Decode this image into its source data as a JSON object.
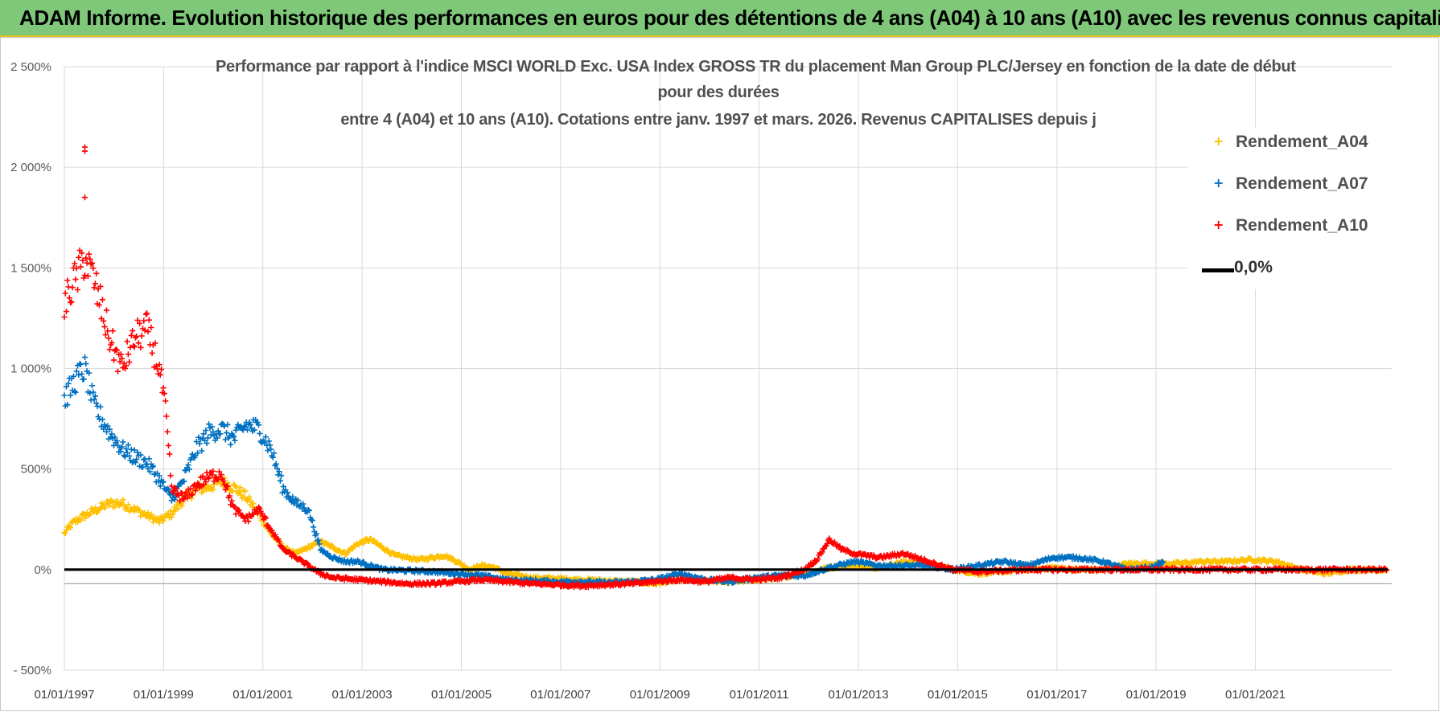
{
  "banner": {
    "text": "ADAM Informe. Evolution historique des performances en euros pour des détentions de 4 ans (A04) à 10 ans (A10) avec les revenus connus capitalisés"
  },
  "colors": {
    "banner_bg": "#7fc87a",
    "banner_border": "#e5c420",
    "a04": "#ffc000",
    "a07": "#0070c0",
    "a10": "#ff0000",
    "zero_line": "#000000",
    "grid": "#d9d9d9"
  },
  "chart_data": {
    "type": "scatter",
    "title_lines": [
      "Performance par rapport à l'indice MSCI WORLD Exc. USA Index GROSS TR  du placement Man Group PLC/Jersey en fonction de la date de début",
      "pour des durées",
      "entre 4 (A04) et 10 ans (A10).  Cotations entre janv. 1997 et mars. 2026.  Revenus CAPITALISES depuis j"
    ],
    "xlabel": "",
    "ylabel": "",
    "x_range": [
      "1997-01-01",
      "2023-10-01"
    ],
    "ylim": [
      -500,
      2500
    ],
    "y_ticks": [
      {
        "value": 2500,
        "label": "2 500%"
      },
      {
        "value": 2000,
        "label": "2 000%"
      },
      {
        "value": 1500,
        "label": "1 500%"
      },
      {
        "value": 1000,
        "label": "1 000%"
      },
      {
        "value": 500,
        "label": "500%"
      },
      {
        "value": 0,
        "label": "0%"
      },
      {
        "value": -500,
        "label": "- 500%"
      }
    ],
    "x_ticks": [
      {
        "date": "1997-01-01",
        "label": "01/01/1997"
      },
      {
        "date": "1999-01-01",
        "label": "01/01/1999"
      },
      {
        "date": "2001-01-01",
        "label": "01/01/2001"
      },
      {
        "date": "2003-01-01",
        "label": "01/01/2003"
      },
      {
        "date": "2005-01-01",
        "label": "01/01/2005"
      },
      {
        "date": "2007-01-01",
        "label": "01/01/2007"
      },
      {
        "date": "2009-01-01",
        "label": "01/01/2009"
      },
      {
        "date": "2011-01-01",
        "label": "01/01/2011"
      },
      {
        "date": "2013-01-01",
        "label": "01/01/2013"
      },
      {
        "date": "2015-01-01",
        "label": "01/01/2015"
      },
      {
        "date": "2017-01-01",
        "label": "01/01/2017"
      },
      {
        "date": "2019-01-01",
        "label": "01/01/2019"
      },
      {
        "date": "2021-01-01",
        "label": "01/01/2021"
      }
    ],
    "grid": true,
    "legend_position": "top-right",
    "series": [
      {
        "name": "Rendement_A04",
        "marker": "+",
        "points": [
          [
            "1997-01-01",
            180
          ],
          [
            "1997-03-01",
            230
          ],
          [
            "1997-06-01",
            270
          ],
          [
            "1997-09-01",
            300
          ],
          [
            "1997-12-01",
            330
          ],
          [
            "1998-03-01",
            330
          ],
          [
            "1998-06-01",
            300
          ],
          [
            "1998-09-01",
            270
          ],
          [
            "1998-12-01",
            240
          ],
          [
            "1999-03-01",
            280
          ],
          [
            "1999-06-01",
            350
          ],
          [
            "1999-09-01",
            400
          ],
          [
            "1999-12-01",
            410
          ],
          [
            "2000-03-01",
            440
          ],
          [
            "2000-06-01",
            410
          ],
          [
            "2000-09-01",
            360
          ],
          [
            "2000-12-01",
            280
          ],
          [
            "2001-03-01",
            180
          ],
          [
            "2001-06-01",
            110
          ],
          [
            "2001-09-01",
            80
          ],
          [
            "2001-12-01",
            110
          ],
          [
            "2002-03-01",
            140
          ],
          [
            "2002-06-01",
            110
          ],
          [
            "2002-09-01",
            80
          ],
          [
            "2002-12-01",
            130
          ],
          [
            "2003-03-01",
            150
          ],
          [
            "2003-06-01",
            110
          ],
          [
            "2003-09-01",
            70
          ],
          [
            "2003-12-01",
            60
          ],
          [
            "2004-03-01",
            50
          ],
          [
            "2004-06-01",
            60
          ],
          [
            "2004-09-01",
            70
          ],
          [
            "2004-12-01",
            40
          ],
          [
            "2005-03-01",
            0
          ],
          [
            "2005-06-01",
            20
          ],
          [
            "2005-09-01",
            10
          ],
          [
            "2005-12-01",
            -20
          ],
          [
            "2006-06-01",
            -40
          ],
          [
            "2006-12-01",
            -45
          ],
          [
            "2007-06-01",
            -50
          ],
          [
            "2007-12-01",
            -55
          ],
          [
            "2008-06-01",
            -60
          ],
          [
            "2008-12-01",
            -70
          ],
          [
            "2009-06-01",
            -50
          ],
          [
            "2009-12-01",
            -55
          ],
          [
            "2010-06-01",
            -60
          ],
          [
            "2010-12-01",
            -50
          ],
          [
            "2011-06-01",
            -40
          ],
          [
            "2011-12-01",
            -20
          ],
          [
            "2012-06-01",
            10
          ],
          [
            "2012-12-01",
            20
          ],
          [
            "2013-06-01",
            10
          ],
          [
            "2013-12-01",
            40
          ],
          [
            "2014-06-01",
            30
          ],
          [
            "2014-12-01",
            0
          ],
          [
            "2015-06-01",
            -20
          ],
          [
            "2015-12-01",
            -10
          ],
          [
            "2016-06-01",
            0
          ],
          [
            "2016-12-01",
            10
          ],
          [
            "2017-06-01",
            0
          ],
          [
            "2017-12-01",
            0
          ],
          [
            "2018-06-01",
            30
          ],
          [
            "2018-12-01",
            30
          ],
          [
            "2019-06-01",
            30
          ],
          [
            "2019-12-01",
            40
          ],
          [
            "2020-06-01",
            40
          ],
          [
            "2020-12-01",
            50
          ],
          [
            "2021-06-01",
            40
          ],
          [
            "2021-12-01",
            0
          ],
          [
            "2022-06-01",
            -20
          ],
          [
            "2022-12-01",
            0
          ],
          [
            "2023-06-01",
            0
          ],
          [
            "2023-09-01",
            0
          ]
        ]
      },
      {
        "name": "Rendement_A07",
        "marker": "+",
        "points": [
          [
            "1997-01-01",
            850
          ],
          [
            "1997-02-15",
            900
          ],
          [
            "1997-04-01",
            950
          ],
          [
            "1997-06-01",
            1000
          ],
          [
            "1997-08-01",
            830
          ],
          [
            "1997-10-01",
            750
          ],
          [
            "1997-12-01",
            680
          ],
          [
            "1998-03-01",
            600
          ],
          [
            "1998-06-01",
            560
          ],
          [
            "1998-09-01",
            530
          ],
          [
            "1998-12-01",
            450
          ],
          [
            "1999-03-01",
            350
          ],
          [
            "1999-06-01",
            450
          ],
          [
            "1999-09-01",
            600
          ],
          [
            "1999-12-01",
            680
          ],
          [
            "2000-03-01",
            700
          ],
          [
            "2000-06-01",
            650
          ],
          [
            "2000-09-01",
            720
          ],
          [
            "2000-12-01",
            700
          ],
          [
            "2001-03-01",
            600
          ],
          [
            "2001-06-01",
            400
          ],
          [
            "2001-09-01",
            330
          ],
          [
            "2001-12-01",
            300
          ],
          [
            "2002-03-01",
            100
          ],
          [
            "2002-06-01",
            60
          ],
          [
            "2002-09-01",
            40
          ],
          [
            "2002-12-01",
            40
          ],
          [
            "2003-03-01",
            20
          ],
          [
            "2003-06-01",
            0
          ],
          [
            "2003-12-01",
            -5
          ],
          [
            "2004-06-01",
            -10
          ],
          [
            "2004-12-01",
            -20
          ],
          [
            "2005-06-01",
            -30
          ],
          [
            "2005-12-01",
            -50
          ],
          [
            "2006-06-01",
            -55
          ],
          [
            "2006-12-01",
            -60
          ],
          [
            "2007-06-01",
            -60
          ],
          [
            "2007-12-01",
            -65
          ],
          [
            "2008-06-01",
            -60
          ],
          [
            "2008-12-01",
            -50
          ],
          [
            "2009-06-01",
            -20
          ],
          [
            "2009-12-01",
            -50
          ],
          [
            "2010-06-01",
            -60
          ],
          [
            "2010-12-01",
            -40
          ],
          [
            "2011-06-01",
            -30
          ],
          [
            "2011-12-01",
            -30
          ],
          [
            "2012-06-01",
            10
          ],
          [
            "2012-12-01",
            40
          ],
          [
            "2013-06-01",
            20
          ],
          [
            "2013-12-01",
            20
          ],
          [
            "2014-06-01",
            20
          ],
          [
            "2014-12-01",
            0
          ],
          [
            "2015-06-01",
            20
          ],
          [
            "2015-12-01",
            40
          ],
          [
            "2016-06-01",
            20
          ],
          [
            "2016-12-01",
            60
          ],
          [
            "2017-06-01",
            60
          ],
          [
            "2017-12-01",
            40
          ],
          [
            "2018-06-01",
            0
          ],
          [
            "2018-12-01",
            10
          ],
          [
            "2019-03-01",
            40
          ]
        ]
      },
      {
        "name": "Rendement_A10",
        "marker": "+",
        "points": [
          [
            "1997-01-01",
            1300
          ],
          [
            "1997-02-15",
            1400
          ],
          [
            "1997-04-01",
            1450
          ],
          [
            "1997-06-01",
            1550
          ],
          [
            "1997-08-01",
            1450
          ],
          [
            "1997-10-01",
            1300
          ],
          [
            "1997-12-01",
            1150
          ],
          [
            "1998-03-01",
            1000
          ],
          [
            "1998-06-01",
            1150
          ],
          [
            "1998-09-01",
            1200
          ],
          [
            "1998-12-01",
            1000
          ],
          [
            "1999-01-15",
            800
          ],
          [
            "1999-03-01",
            400
          ],
          [
            "1999-06-01",
            350
          ],
          [
            "1999-09-01",
            420
          ],
          [
            "1999-12-01",
            460
          ],
          [
            "2000-03-01",
            480
          ],
          [
            "2000-06-01",
            300
          ],
          [
            "2000-09-01",
            250
          ],
          [
            "2000-12-01",
            300
          ],
          [
            "2001-03-01",
            200
          ],
          [
            "2001-06-01",
            100
          ],
          [
            "2001-09-01",
            60
          ],
          [
            "2001-12-01",
            20
          ],
          [
            "2002-03-01",
            -20
          ],
          [
            "2002-06-01",
            -40
          ],
          [
            "2002-12-01",
            -50
          ],
          [
            "2003-06-01",
            -60
          ],
          [
            "2003-12-01",
            -70
          ],
          [
            "2004-06-01",
            -70
          ],
          [
            "2004-12-01",
            -60
          ],
          [
            "2005-06-01",
            -50
          ],
          [
            "2005-12-01",
            -60
          ],
          [
            "2006-06-01",
            -70
          ],
          [
            "2006-12-01",
            -75
          ],
          [
            "2007-06-01",
            -80
          ],
          [
            "2007-12-01",
            -75
          ],
          [
            "2008-06-01",
            -70
          ],
          [
            "2008-12-01",
            -60
          ],
          [
            "2009-06-01",
            -50
          ],
          [
            "2009-12-01",
            -60
          ],
          [
            "2010-06-01",
            -40
          ],
          [
            "2010-12-01",
            -50
          ],
          [
            "2011-06-01",
            -40
          ],
          [
            "2011-12-01",
            0
          ],
          [
            "2012-03-01",
            50
          ],
          [
            "2012-06-01",
            150
          ],
          [
            "2012-09-01",
            100
          ],
          [
            "2012-12-01",
            80
          ],
          [
            "2013-06-01",
            60
          ],
          [
            "2013-12-01",
            80
          ],
          [
            "2014-06-01",
            40
          ],
          [
            "2014-12-01",
            0
          ],
          [
            "2015-06-01",
            -10
          ],
          [
            "2015-12-01",
            -5
          ],
          [
            "2016-06-01",
            0
          ],
          [
            "2017-06-01",
            0
          ],
          [
            "2018-06-01",
            0
          ],
          [
            "2019-06-01",
            0
          ],
          [
            "2020-06-01",
            0
          ],
          [
            "2021-06-01",
            0
          ],
          [
            "2022-06-01",
            0
          ],
          [
            "2023-09-01",
            0
          ]
        ],
        "outliers": [
          [
            "1997-06-01",
            1850
          ],
          [
            "1997-06-01",
            2080
          ],
          [
            "1997-06-01",
            2100
          ]
        ]
      }
    ],
    "reference_line": {
      "name": "0,0%",
      "value": 0
    }
  }
}
